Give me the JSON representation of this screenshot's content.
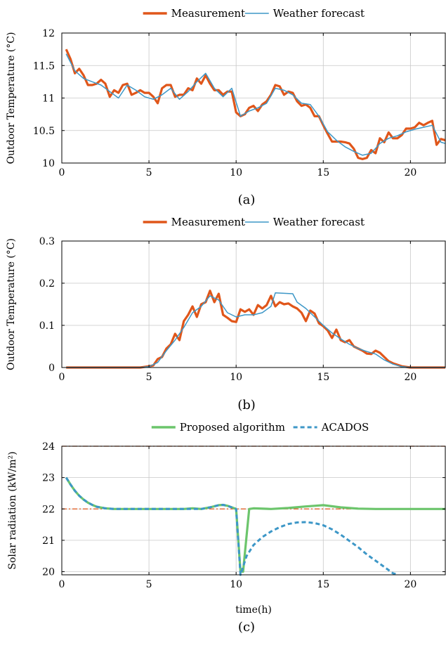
{
  "figure": {
    "captions": [
      "(a)",
      "(b)",
      "(c)"
    ]
  },
  "chart_data": [
    {
      "type": "line",
      "caption": "(a)",
      "ylabel": "Outdoor Temperature (°C)",
      "xlabel": "",
      "xlim": [
        0,
        22
      ],
      "ylim": [
        10,
        12
      ],
      "xticks": [
        0,
        5,
        10,
        15,
        20
      ],
      "yticks": [
        10,
        10.5,
        11,
        11.5,
        12
      ],
      "ytick_labels": [
        "10",
        "10.5",
        "11",
        "11.5",
        "12"
      ],
      "grid": true,
      "legend": "top-center",
      "series": [
        {
          "name": "Measurement",
          "color": "#e0561a",
          "x": [
            0.25,
            0.5,
            0.75,
            1,
            1.25,
            1.5,
            1.75,
            2,
            2.25,
            2.5,
            2.75,
            3,
            3.25,
            3.5,
            3.75,
            4,
            4.25,
            4.5,
            4.75,
            5,
            5.25,
            5.5,
            5.75,
            6,
            6.25,
            6.5,
            6.75,
            7,
            7.25,
            7.5,
            7.75,
            8,
            8.25,
            8.5,
            8.75,
            9,
            9.25,
            9.5,
            9.75,
            10,
            10.25,
            10.5,
            10.75,
            11,
            11.25,
            11.5,
            11.75,
            12,
            12.25,
            12.5,
            12.75,
            13,
            13.25,
            13.5,
            13.75,
            14,
            14.25,
            14.5,
            14.75,
            15,
            15.25,
            15.5,
            15.75,
            16,
            16.25,
            16.5,
            16.75,
            17,
            17.25,
            17.5,
            17.75,
            18,
            18.25,
            18.5,
            18.75,
            19,
            19.25,
            19.5,
            19.75,
            20,
            20.25,
            20.5,
            20.75,
            21,
            21.25,
            21.5,
            21.75,
            22
          ],
          "y": [
            11.75,
            11.6,
            11.38,
            11.45,
            11.35,
            11.2,
            11.2,
            11.22,
            11.28,
            11.22,
            11.02,
            11.12,
            11.08,
            11.2,
            11.22,
            11.05,
            11.08,
            11.12,
            11.08,
            11.08,
            11.02,
            10.92,
            11.15,
            11.2,
            11.2,
            11.02,
            11.05,
            11.05,
            11.15,
            11.12,
            11.3,
            11.22,
            11.35,
            11.22,
            11.12,
            11.12,
            11.05,
            11.1,
            11.1,
            10.78,
            10.72,
            10.75,
            10.85,
            10.88,
            10.8,
            10.9,
            10.95,
            11.05,
            11.2,
            11.18,
            11.05,
            11.1,
            11.08,
            10.95,
            10.88,
            10.9,
            10.85,
            10.72,
            10.72,
            10.58,
            10.45,
            10.33,
            10.33,
            10.33,
            10.32,
            10.3,
            10.22,
            10.08,
            10.06,
            10.08,
            10.2,
            10.15,
            10.38,
            10.32,
            10.47,
            10.38,
            10.38,
            10.43,
            10.53,
            10.53,
            10.55,
            10.62,
            10.58,
            10.62,
            10.65,
            10.28,
            10.37,
            10.35
          ]
        },
        {
          "name": "Weather forecast",
          "color": "#3d97c7",
          "x": [
            0.25,
            0.75,
            1.25,
            1.75,
            2.25,
            2.75,
            3.25,
            3.75,
            4.25,
            4.75,
            5.25,
            5.75,
            6.25,
            6.75,
            7.25,
            7.75,
            8.25,
            8.75,
            9.25,
            9.75,
            10.25,
            10.75,
            11.25,
            11.75,
            12.25,
            12.75,
            13.25,
            13.75,
            14.25,
            14.75,
            15.25,
            15.75,
            16.25,
            16.75,
            17.25,
            17.75,
            18.25,
            18.75,
            19.25,
            19.75,
            20.25,
            20.75,
            21.25,
            21.75,
            22
          ],
          "y": [
            11.68,
            11.42,
            11.3,
            11.25,
            11.2,
            11.1,
            11.0,
            11.2,
            11.12,
            11.02,
            10.98,
            11.05,
            11.15,
            10.98,
            11.1,
            11.25,
            11.38,
            11.15,
            11.02,
            11.15,
            10.72,
            10.8,
            10.85,
            10.92,
            11.15,
            11.12,
            11.05,
            10.92,
            10.9,
            10.72,
            10.48,
            10.35,
            10.25,
            10.18,
            10.12,
            10.15,
            10.3,
            10.38,
            10.42,
            10.48,
            10.52,
            10.55,
            10.58,
            10.32,
            10.3
          ]
        }
      ]
    },
    {
      "type": "line",
      "caption": "(b)",
      "ylabel": "Outdoor Temperature (°C)",
      "xlabel": "",
      "xlim": [
        0,
        22
      ],
      "ylim": [
        0,
        0.3
      ],
      "xticks": [
        0,
        5,
        10,
        15,
        20
      ],
      "yticks": [
        0,
        0.1,
        0.2,
        0.3
      ],
      "ytick_labels": [
        "0",
        "0.1",
        "0.2",
        "0.3"
      ],
      "grid": true,
      "legend": "top-center",
      "series": [
        {
          "name": "Measurement",
          "color": "#e0561a",
          "x": [
            0.25,
            4.5,
            5.0,
            5.25,
            5.5,
            5.75,
            6.0,
            6.25,
            6.5,
            6.75,
            7.0,
            7.25,
            7.5,
            7.75,
            8.0,
            8.25,
            8.5,
            8.75,
            9.0,
            9.25,
            9.5,
            9.75,
            10.0,
            10.25,
            10.5,
            10.75,
            11.0,
            11.25,
            11.5,
            11.75,
            12.0,
            12.25,
            12.5,
            12.75,
            13.0,
            13.25,
            13.5,
            13.75,
            14.0,
            14.25,
            14.5,
            14.75,
            15.0,
            15.25,
            15.5,
            15.75,
            16.0,
            16.25,
            16.5,
            16.75,
            17.0,
            17.25,
            17.5,
            17.75,
            18.0,
            18.25,
            18.5,
            18.75,
            19.0,
            19.5,
            20.0,
            22.0
          ],
          "y": [
            0,
            0,
            0.003,
            0.005,
            0.02,
            0.025,
            0.045,
            0.055,
            0.08,
            0.065,
            0.11,
            0.125,
            0.145,
            0.12,
            0.15,
            0.155,
            0.182,
            0.155,
            0.175,
            0.125,
            0.118,
            0.11,
            0.108,
            0.138,
            0.132,
            0.138,
            0.125,
            0.148,
            0.14,
            0.148,
            0.17,
            0.145,
            0.155,
            0.15,
            0.152,
            0.145,
            0.14,
            0.13,
            0.11,
            0.135,
            0.128,
            0.105,
            0.098,
            0.088,
            0.07,
            0.09,
            0.065,
            0.06,
            0.065,
            0.05,
            0.045,
            0.04,
            0.033,
            0.032,
            0.04,
            0.035,
            0.025,
            0.015,
            0.01,
            0.003,
            0,
            0
          ]
        },
        {
          "name": "Weather forecast",
          "color": "#3d97c7",
          "x": [
            0.25,
            4.5,
            5.0,
            5.5,
            6.0,
            6.5,
            7.0,
            7.5,
            8.0,
            8.5,
            9.0,
            9.5,
            10.0,
            10.5,
            11.0,
            11.5,
            12.0,
            12.25,
            13.25,
            13.5,
            14.0,
            14.5,
            15.0,
            15.5,
            16.0,
            16.5,
            17.0,
            17.5,
            18.0,
            18.5,
            19.0,
            19.5,
            20.0,
            22.0
          ],
          "y": [
            0,
            0,
            0.002,
            0.012,
            0.04,
            0.065,
            0.095,
            0.13,
            0.145,
            0.17,
            0.16,
            0.13,
            0.12,
            0.125,
            0.125,
            0.13,
            0.145,
            0.177,
            0.175,
            0.155,
            0.14,
            0.12,
            0.1,
            0.082,
            0.068,
            0.055,
            0.045,
            0.038,
            0.032,
            0.018,
            0.008,
            0.002,
            0,
            0
          ]
        }
      ]
    },
    {
      "type": "line",
      "caption": "(c)",
      "ylabel": "Solar radiation (kW/m²)",
      "xlabel": "time(h)",
      "xlim": [
        0,
        22
      ],
      "ylim": [
        19.9,
        24
      ],
      "xticks": [
        0,
        5,
        10,
        15,
        20
      ],
      "yticks": [
        20,
        21,
        22,
        23,
        24
      ],
      "ytick_labels": [
        "20",
        "21",
        "22",
        "23",
        "24"
      ],
      "grid": true,
      "legend": "top-center",
      "reference_lines": [
        {
          "y": 24,
          "color": "#e0561a",
          "style": "dashdot"
        },
        {
          "y": 22,
          "color": "#e0561a",
          "style": "dashdot"
        }
      ],
      "series": [
        {
          "name": "Proposed algorithm",
          "color": "#6cc56c",
          "style": "solid",
          "x": [
            0.25,
            0.5,
            0.75,
            1.0,
            1.25,
            1.5,
            1.75,
            2.0,
            2.5,
            3.0,
            4.0,
            5.0,
            6.0,
            7.0,
            7.5,
            8.0,
            8.5,
            9.0,
            9.25,
            9.5,
            10.0,
            10.25,
            10.4,
            10.75,
            11.0,
            12.0,
            13.0,
            14.0,
            14.5,
            15.0,
            16.0,
            17.0,
            18.0,
            19.0,
            20.0,
            22.0
          ],
          "y": [
            23.0,
            22.78,
            22.58,
            22.42,
            22.3,
            22.2,
            22.13,
            22.07,
            22.02,
            22.0,
            22.0,
            22.0,
            22.0,
            22.0,
            22.02,
            22.0,
            22.05,
            22.12,
            22.13,
            22.1,
            22.0,
            20.0,
            20.0,
            22.0,
            22.02,
            22.0,
            22.03,
            22.08,
            22.1,
            22.12,
            22.05,
            22.01,
            22.0,
            22.0,
            22.0,
            22.0
          ]
        },
        {
          "name": "ACADOS",
          "color": "#3d97c7",
          "style": "dashed",
          "x": [
            0.25,
            0.5,
            0.75,
            1.0,
            1.25,
            1.5,
            1.75,
            2.0,
            2.5,
            3.0,
            4.0,
            5.0,
            6.0,
            7.0,
            8.0,
            8.5,
            9.0,
            9.25,
            9.5,
            10.0,
            10.25,
            10.6,
            11.0,
            11.5,
            12.0,
            12.5,
            13.0,
            13.5,
            14.0,
            14.5,
            15.0,
            15.5,
            16.0,
            16.5,
            17.0,
            17.5,
            18.0,
            18.5,
            19.0,
            19.3
          ],
          "y": [
            23.0,
            22.78,
            22.58,
            22.42,
            22.3,
            22.2,
            22.13,
            22.07,
            22.02,
            22.0,
            22.0,
            22.0,
            22.0,
            22.0,
            22.0,
            22.05,
            22.12,
            22.13,
            22.1,
            22.0,
            19.9,
            20.5,
            20.85,
            21.1,
            21.28,
            21.42,
            21.52,
            21.57,
            21.58,
            21.55,
            21.48,
            21.35,
            21.18,
            20.98,
            20.78,
            20.55,
            20.35,
            20.15,
            19.95,
            19.9
          ]
        }
      ]
    }
  ]
}
